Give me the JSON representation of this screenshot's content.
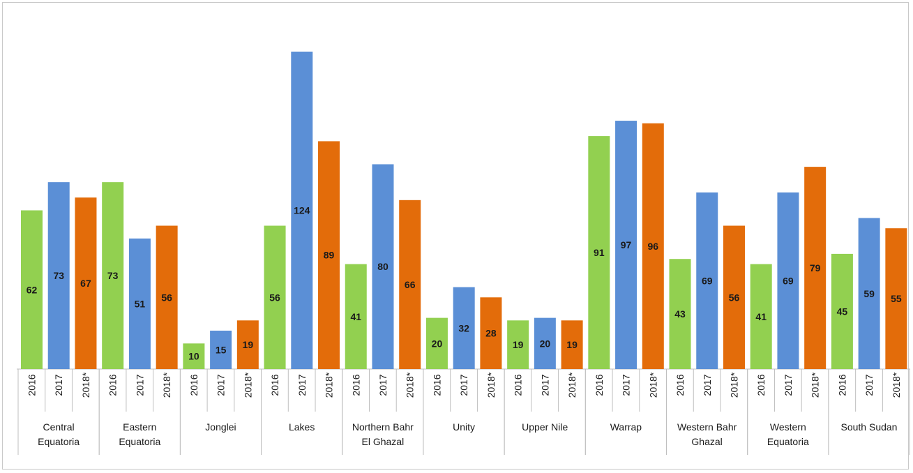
{
  "chart_data": {
    "type": "bar",
    "title": "",
    "xlabel": "",
    "ylabel": "",
    "ylim": [
      0,
      124
    ],
    "grid": false,
    "legend": "none",
    "series_labels": [
      "2016",
      "2017",
      "2018*"
    ],
    "colors": [
      "#92d050",
      "#5b8fd6",
      "#e36c0a"
    ],
    "categories": [
      {
        "name": [
          "Central",
          "Equatoria"
        ],
        "values": [
          62,
          73,
          67
        ]
      },
      {
        "name": [
          "Eastern",
          "Equatoria"
        ],
        "values": [
          73,
          51,
          56
        ]
      },
      {
        "name": [
          "Jonglei"
        ],
        "values": [
          10,
          15,
          19
        ]
      },
      {
        "name": [
          "Lakes"
        ],
        "values": [
          56,
          124,
          89
        ]
      },
      {
        "name": [
          "Northern Bahr",
          "El Ghazal"
        ],
        "values": [
          41,
          80,
          66
        ]
      },
      {
        "name": [
          "Unity"
        ],
        "values": [
          20,
          32,
          28
        ]
      },
      {
        "name": [
          "Upper Nile"
        ],
        "values": [
          19,
          20,
          19
        ]
      },
      {
        "name": [
          "Warrap"
        ],
        "values": [
          91,
          97,
          96
        ]
      },
      {
        "name": [
          "Western Bahr",
          "Ghazal"
        ],
        "values": [
          43,
          69,
          56
        ]
      },
      {
        "name": [
          "Western",
          "Equatoria"
        ],
        "values": [
          41,
          69,
          79
        ]
      },
      {
        "name": [
          "South Sudan"
        ],
        "values": [
          45,
          59,
          55
        ]
      }
    ]
  }
}
